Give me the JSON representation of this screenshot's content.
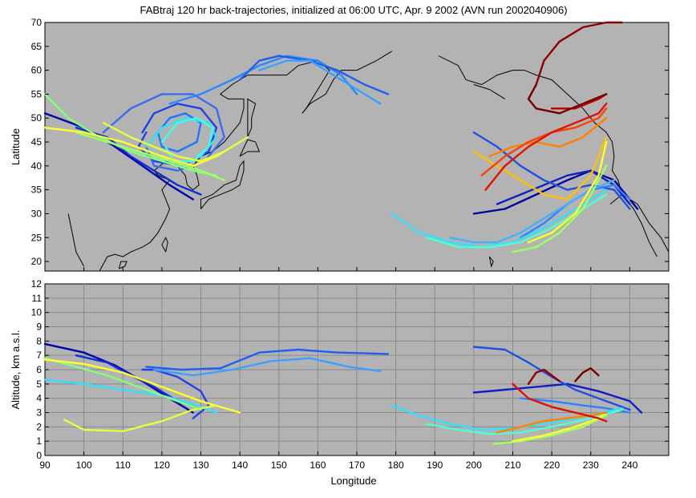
{
  "chart_data": [
    {
      "type": "line",
      "panel": "map",
      "title": "FABtraj 120 hr back-trajectories, initialized at 06:00 UTC, Apr. 9 2002 (AVN run 2002040906)",
      "xlabel": "",
      "ylabel": "Latitude",
      "xlim": [
        90,
        250
      ],
      "ylim": [
        18,
        70
      ],
      "yticks": [
        20,
        25,
        30,
        35,
        40,
        45,
        50,
        55,
        60,
        65,
        70
      ],
      "grid": false,
      "background": "#b3b3b3",
      "coastline_color": "#000000",
      "series": [
        {
          "color": "#0000b0",
          "x": [
            90,
            100,
            108,
            115,
            122,
            128
          ],
          "y": [
            51,
            48,
            44,
            40,
            36,
            33
          ]
        },
        {
          "color": "#1030d0",
          "x": [
            98,
            106,
            112,
            118,
            124,
            130
          ],
          "y": [
            48,
            46,
            42,
            39,
            36,
            34
          ]
        },
        {
          "color": "#2040e8",
          "x": [
            115,
            118,
            124,
            130,
            134,
            132,
            125,
            118,
            114,
            116
          ],
          "y": [
            47,
            51,
            53,
            52,
            48,
            43,
            40,
            41,
            44,
            47
          ]
        },
        {
          "color": "#3a6cf0",
          "x": [
            105,
            112,
            120,
            128,
            134,
            136,
            131,
            124,
            118,
            116
          ],
          "y": [
            47,
            52,
            55,
            55,
            52,
            46,
            41,
            39,
            40,
            44
          ]
        },
        {
          "color": "#1e78ff",
          "x": [
            118,
            122,
            126,
            130,
            129,
            124,
            120,
            119
          ],
          "y": [
            46,
            50,
            51,
            49,
            45,
            43,
            44,
            47
          ]
        },
        {
          "color": "#2a88ff",
          "x": [
            122,
            130,
            138,
            145,
            152,
            160,
            166,
            170
          ],
          "y": [
            53,
            55,
            58,
            61,
            63,
            62,
            59,
            55
          ]
        },
        {
          "color": "#1f5ff0",
          "x": [
            140,
            145,
            150,
            158,
            165,
            172,
            178
          ],
          "y": [
            58,
            62,
            63,
            62,
            60,
            57,
            55
          ]
        },
        {
          "color": "#3aa0ff",
          "x": [
            145,
            152,
            158,
            164,
            170,
            176
          ],
          "y": [
            60,
            62,
            62,
            59,
            56,
            53
          ]
        },
        {
          "color": "#30e0ff",
          "x": [
            116,
            120,
            126,
            132,
            134,
            130,
            124,
            120,
            118
          ],
          "y": [
            44,
            48,
            50,
            49,
            46,
            42,
            40,
            41,
            43
          ]
        },
        {
          "color": "#40ffe0",
          "x": [
            120,
            124,
            129,
            133,
            132,
            128,
            123,
            121
          ],
          "y": [
            45,
            49,
            50,
            48,
            44,
            41,
            41,
            44
          ]
        },
        {
          "color": "#80ff80",
          "x": [
            90,
            96,
            104,
            112,
            120,
            128,
            134
          ],
          "y": [
            55,
            50,
            46,
            43,
            41,
            39,
            38
          ]
        },
        {
          "color": "#a0ff60",
          "x": [
            98,
            106,
            114,
            122,
            130,
            136
          ],
          "y": [
            47,
            45,
            43,
            41,
            39,
            37
          ]
        },
        {
          "color": "#ffff30",
          "x": [
            90,
            100,
            110,
            120,
            128,
            134,
            140
          ],
          "y": [
            48,
            47,
            45,
            42,
            40,
            42,
            45
          ]
        },
        {
          "color": "#e0ff40",
          "x": [
            105,
            112,
            118,
            124,
            130,
            136,
            142
          ],
          "y": [
            49,
            46,
            44,
            42,
            41,
            43,
            46
          ]
        },
        {
          "color": "#0000a0",
          "x": [
            200,
            208,
            216,
            224,
            230,
            236,
            242
          ],
          "y": [
            30,
            31,
            34,
            37,
            39,
            37,
            31
          ]
        },
        {
          "color": "#1020c0",
          "x": [
            206,
            212,
            218,
            224,
            230,
            236,
            240
          ],
          "y": [
            32,
            34,
            36,
            38,
            39,
            36,
            32
          ]
        },
        {
          "color": "#2050e0",
          "x": [
            200,
            206,
            212,
            218,
            224,
            230,
            236,
            240
          ],
          "y": [
            47,
            44,
            40,
            37,
            35,
            36,
            35,
            31
          ]
        },
        {
          "color": "#3080ff",
          "x": [
            212,
            218,
            224,
            230,
            236,
            240
          ],
          "y": [
            25,
            28,
            32,
            35,
            36,
            33
          ]
        },
        {
          "color": "#40b0ff",
          "x": [
            194,
            200,
            206,
            212,
            218,
            224,
            230,
            236
          ],
          "y": [
            25,
            24,
            24,
            26,
            29,
            32,
            35,
            37
          ]
        },
        {
          "color": "#30e0ff",
          "x": [
            179,
            186,
            194,
            202,
            210,
            218,
            226,
            234
          ],
          "y": [
            30,
            26,
            24,
            23,
            24,
            27,
            31,
            35
          ]
        },
        {
          "color": "#50ffd0",
          "x": [
            188,
            196,
            204,
            212,
            220,
            228,
            234
          ],
          "y": [
            25,
            23,
            23,
            24,
            27,
            31,
            34
          ]
        },
        {
          "color": "#a0ff60",
          "x": [
            210,
            216,
            222,
            228,
            234
          ],
          "y": [
            22,
            23,
            26,
            31,
            40
          ]
        },
        {
          "color": "#ffff30",
          "x": [
            214,
            220,
            226,
            232,
            234
          ],
          "y": [
            24,
            26,
            30,
            38,
            45
          ]
        },
        {
          "color": "#ffc000",
          "x": [
            200,
            206,
            212,
            218,
            224,
            230,
            234
          ],
          "y": [
            43,
            40,
            37,
            34,
            33,
            38,
            46
          ]
        },
        {
          "color": "#ff8000",
          "x": [
            204,
            210,
            216,
            222,
            228,
            234
          ],
          "y": [
            42,
            44,
            45,
            44,
            46,
            50
          ]
        },
        {
          "color": "#ff4000",
          "x": [
            202,
            208,
            214,
            220,
            226,
            232,
            234
          ],
          "y": [
            38,
            42,
            45,
            47,
            48,
            50,
            52
          ]
        },
        {
          "color": "#e01000",
          "x": [
            203,
            208,
            214,
            220,
            226,
            232,
            234
          ],
          "y": [
            35,
            40,
            44,
            47,
            49,
            51,
            53
          ]
        },
        {
          "color": "#c00000",
          "x": [
            220,
            226,
            232,
            234
          ],
          "y": [
            52,
            52,
            54,
            55
          ]
        },
        {
          "color": "#900000",
          "x": [
            216,
            218,
            222,
            228,
            234,
            238
          ],
          "y": [
            57,
            62,
            66,
            69,
            70,
            70
          ]
        },
        {
          "color": "#700000",
          "x": [
            216,
            214,
            216,
            222,
            228,
            234
          ],
          "y": [
            57,
            54,
            52,
            51,
            53,
            55
          ]
        }
      ]
    },
    {
      "type": "line",
      "panel": "altitude",
      "title": "",
      "xlabel": "Longitude",
      "ylabel": "Altitude, km a.s.l.",
      "xlim": [
        90,
        250
      ],
      "ylim": [
        0,
        12
      ],
      "xticks": [
        90,
        100,
        110,
        120,
        130,
        140,
        150,
        160,
        170,
        180,
        190,
        200,
        210,
        220,
        230,
        240
      ],
      "yticks": [
        0,
        1,
        2,
        3,
        4,
        5,
        6,
        7,
        8,
        9,
        10,
        11,
        12
      ],
      "grid": true,
      "background": "#b3b3b3",
      "series": [
        {
          "color": "#0000b0",
          "x": [
            90,
            100,
            108,
            115,
            122,
            128
          ],
          "y": [
            7.8,
            7.2,
            6.3,
            5.2,
            4.0,
            3.0
          ]
        },
        {
          "color": "#1030d0",
          "x": [
            98,
            106,
            112,
            118,
            124,
            130
          ],
          "y": [
            7.0,
            6.5,
            5.6,
            4.8,
            3.8,
            3.2
          ]
        },
        {
          "color": "#2040e8",
          "x": [
            115,
            118,
            124,
            130,
            132,
            128
          ],
          "y": [
            6.0,
            6.0,
            5.5,
            4.5,
            3.5,
            2.6
          ]
        },
        {
          "color": "#1f5ff0",
          "x": [
            116,
            125,
            135,
            145,
            155,
            165,
            178
          ],
          "y": [
            6.2,
            6.0,
            6.1,
            7.2,
            7.4,
            7.2,
            7.1
          ]
        },
        {
          "color": "#3aa0ff",
          "x": [
            118,
            128,
            138,
            148,
            158,
            168,
            176
          ],
          "y": [
            6.0,
            5.6,
            6.0,
            6.6,
            6.8,
            6.2,
            5.9
          ]
        },
        {
          "color": "#30e0ff",
          "x": [
            90,
            100,
            110,
            120,
            128,
            134
          ],
          "y": [
            5.3,
            5.0,
            4.6,
            4.2,
            3.6,
            3.0
          ]
        },
        {
          "color": "#80ff80",
          "x": [
            90,
            98,
            106,
            114,
            122,
            130
          ],
          "y": [
            6.8,
            6.2,
            5.6,
            4.8,
            4.0,
            3.2
          ]
        },
        {
          "color": "#ffff30",
          "x": [
            90,
            100,
            110,
            120,
            130,
            140
          ],
          "y": [
            6.7,
            6.4,
            5.8,
            4.8,
            3.8,
            3.0
          ]
        },
        {
          "color": "#e0ff40",
          "x": [
            95,
            100,
            110,
            120,
            128,
            134
          ],
          "y": [
            2.5,
            1.8,
            1.7,
            2.4,
            3.2,
            3.5
          ]
        },
        {
          "color": "#1020c0",
          "x": [
            200,
            208,
            216,
            224,
            232,
            240,
            243
          ],
          "y": [
            4.4,
            4.6,
            4.8,
            5.0,
            4.5,
            3.8,
            3.0
          ]
        },
        {
          "color": "#2050e0",
          "x": [
            200,
            208,
            214,
            220,
            226,
            232,
            240
          ],
          "y": [
            7.6,
            7.4,
            6.5,
            5.5,
            4.6,
            4.0,
            3.2
          ]
        },
        {
          "color": "#3080ff",
          "x": [
            212,
            220,
            228,
            234,
            240
          ],
          "y": [
            4.0,
            3.8,
            3.5,
            3.3,
            3.0
          ]
        },
        {
          "color": "#30e0ff",
          "x": [
            179,
            186,
            194,
            202,
            210,
            220,
            230,
            238
          ],
          "y": [
            3.5,
            2.8,
            2.2,
            1.8,
            1.9,
            2.3,
            2.8,
            3.3
          ]
        },
        {
          "color": "#50ffd0",
          "x": [
            188,
            196,
            204,
            212,
            220,
            230,
            238
          ],
          "y": [
            2.2,
            1.8,
            1.5,
            1.6,
            2.0,
            2.6,
            3.2
          ]
        },
        {
          "color": "#a0ff60",
          "x": [
            205,
            212,
            220,
            228,
            234
          ],
          "y": [
            0.8,
            1.0,
            1.4,
            2.0,
            2.8
          ]
        },
        {
          "color": "#ffff30",
          "x": [
            210,
            218,
            226,
            232,
            234
          ],
          "y": [
            1.0,
            1.4,
            2.0,
            2.6,
            3.0
          ]
        },
        {
          "color": "#ff8000",
          "x": [
            206,
            212,
            218,
            224,
            230,
            234
          ],
          "y": [
            1.6,
            2.0,
            2.4,
            2.6,
            2.8,
            3.0
          ]
        },
        {
          "color": "#e01000",
          "x": [
            210,
            214,
            220,
            226,
            232,
            234
          ],
          "y": [
            5.0,
            4.0,
            3.4,
            3.0,
            2.6,
            2.4
          ]
        },
        {
          "color": "#900000",
          "x": [
            214,
            216,
            218,
            220,
            222
          ],
          "y": [
            5.0,
            5.8,
            6.0,
            5.6,
            5.2
          ]
        },
        {
          "color": "#700000",
          "x": [
            226,
            228,
            230,
            232
          ],
          "y": [
            5.2,
            5.8,
            6.1,
            5.6
          ]
        }
      ]
    }
  ]
}
